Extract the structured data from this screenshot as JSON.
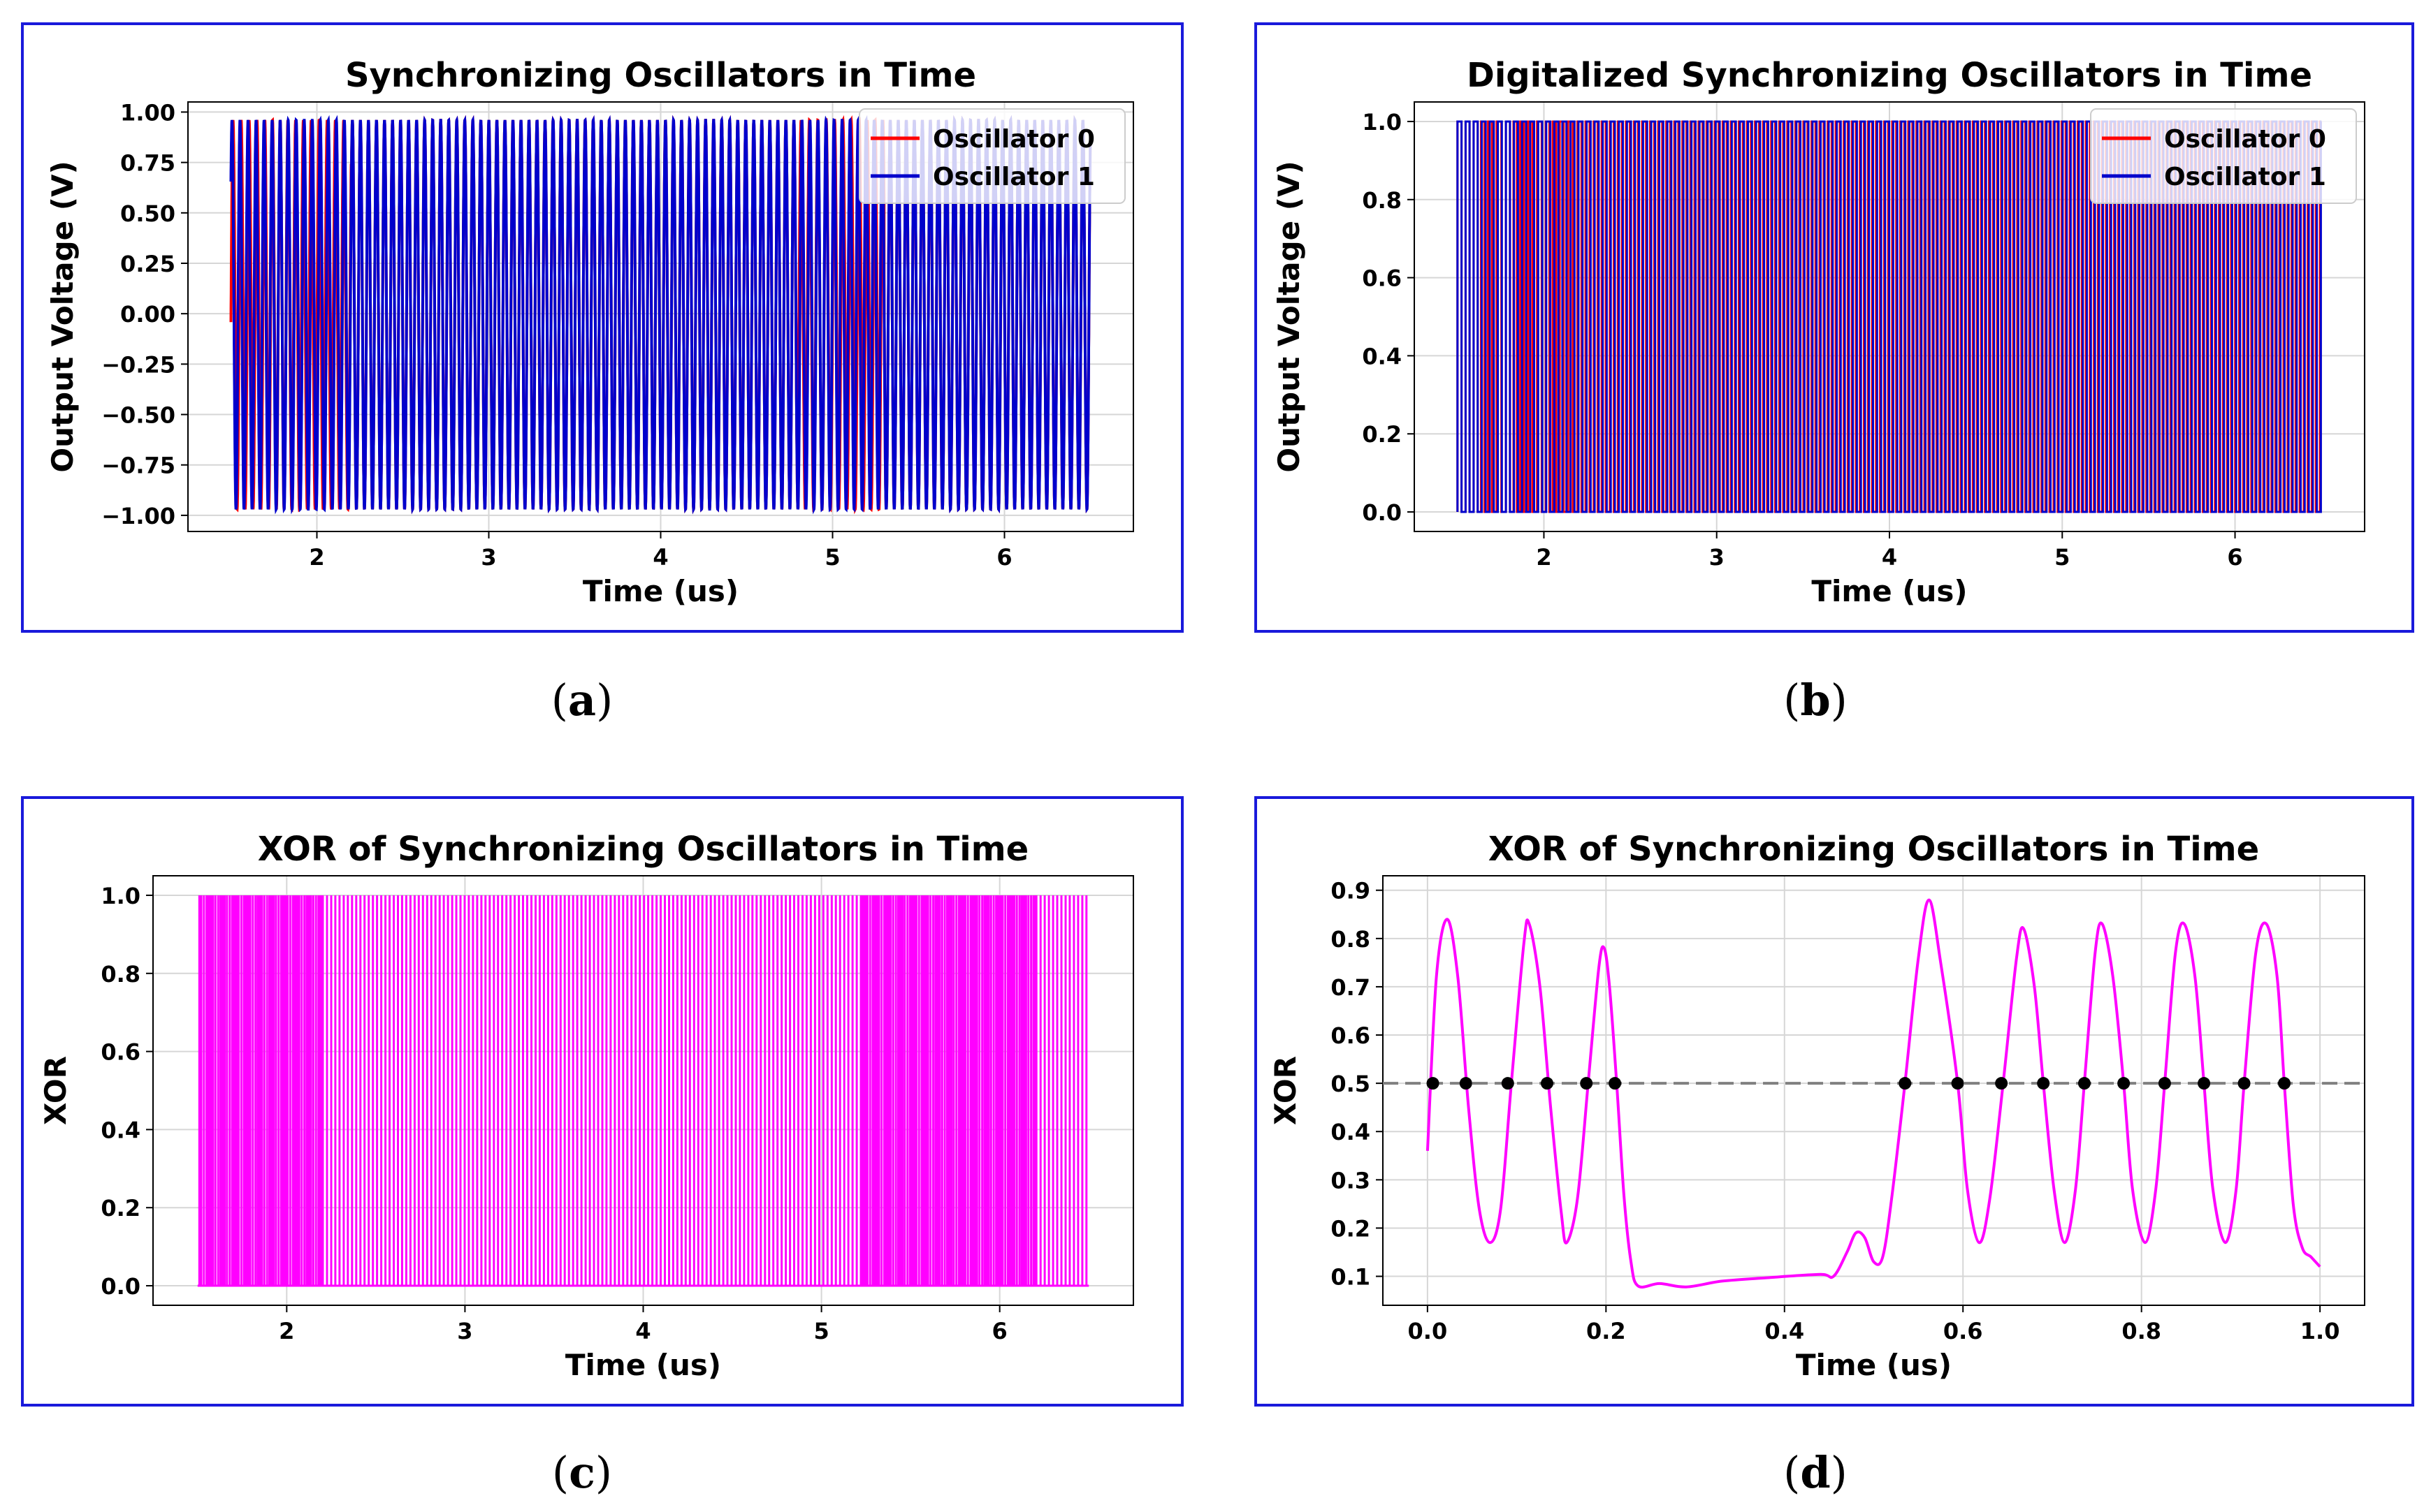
{
  "captions": {
    "a": "a",
    "b": "b",
    "c": "c",
    "d": "d"
  },
  "colors": {
    "frame": "#1a1adb",
    "osc0": "#ff0000",
    "osc1": "#0000cc",
    "xor": "#ff00ff",
    "threshold": "#808080",
    "crossing": "#000000"
  },
  "chart_data": [
    {
      "id": "a",
      "type": "line",
      "title": "Synchronizing Oscillators in Time",
      "xlabel": "Time (us)",
      "ylabel": "Output Voltage (V)",
      "xlim": [
        1.25,
        6.75
      ],
      "ylim": [
        -1.08,
        1.05
      ],
      "xticks": [
        2,
        3,
        4,
        5,
        6
      ],
      "yticks": [
        -1.0,
        -0.75,
        -0.5,
        -0.25,
        0.0,
        0.25,
        0.5,
        0.75,
        1.0
      ],
      "ytick_labels": [
        "−1.00",
        "−0.75",
        "−0.50",
        "−0.25",
        "0.00",
        "0.25",
        "0.50",
        "0.75",
        "1.00"
      ],
      "legend": [
        "Oscillator 0",
        "Oscillator 1"
      ],
      "legend_loc": "top-right",
      "signal": {
        "t_start": 1.5,
        "t_end": 6.5,
        "amp_min": -0.97,
        "amp_max": 0.96,
        "period": 0.0467,
        "sync_windows": [
          [
            2.2,
            4.8
          ],
          [
            5.3,
            6.5
          ]
        ]
      }
    },
    {
      "id": "b",
      "type": "line",
      "title": "Digitalized Synchronizing Oscillators in Time",
      "xlabel": "Time (us)",
      "ylabel": "Output Voltage (V)",
      "xlim": [
        1.25,
        6.75
      ],
      "ylim": [
        -0.05,
        1.05
      ],
      "xticks": [
        2,
        3,
        4,
        5,
        6
      ],
      "yticks": [
        0.0,
        0.2,
        0.4,
        0.6,
        0.8,
        1.0
      ],
      "ytick_labels": [
        "0.0",
        "0.2",
        "0.4",
        "0.6",
        "0.8",
        "1.0"
      ],
      "legend": [
        "Oscillator 0",
        "Oscillator 1"
      ],
      "legend_loc": "top-right",
      "signal": {
        "t_start": 1.5,
        "t_end": 6.5,
        "low": 0.0,
        "high": 1.0,
        "period": 0.0467
      }
    },
    {
      "id": "c",
      "type": "line",
      "title": "XOR of Synchronizing Oscillators in Time",
      "xlabel": "Time (us)",
      "ylabel": "XOR",
      "xlim": [
        1.25,
        6.75
      ],
      "ylim": [
        -0.05,
        1.05
      ],
      "xticks": [
        2,
        3,
        4,
        5,
        6
      ],
      "yticks": [
        0.0,
        0.2,
        0.4,
        0.6,
        0.8,
        1.0
      ],
      "ytick_labels": [
        "0.0",
        "0.2",
        "0.4",
        "0.6",
        "0.8",
        "1.0"
      ],
      "signal": {
        "t_start": 1.5,
        "t_end": 6.5,
        "low": 0.0,
        "high": 1.0
      }
    },
    {
      "id": "d",
      "type": "line",
      "title": "XOR of Synchronizing Oscillators in Time",
      "xlabel": "Time (us)",
      "ylabel": "XOR",
      "xlim": [
        -0.05,
        1.05
      ],
      "ylim": [
        0.04,
        0.93
      ],
      "xticks": [
        0.0,
        0.2,
        0.4,
        0.6,
        0.8,
        1.0
      ],
      "xtick_labels": [
        "0.0",
        "0.2",
        "0.4",
        "0.6",
        "0.8",
        "1.0"
      ],
      "yticks": [
        0.1,
        0.2,
        0.3,
        0.4,
        0.5,
        0.6,
        0.7,
        0.8,
        0.9
      ],
      "ytick_labels": [
        "0.1",
        "0.2",
        "0.3",
        "0.4",
        "0.5",
        "0.6",
        "0.7",
        "0.8",
        "0.9"
      ],
      "threshold": 0.5,
      "curve": [
        [
          0.0,
          0.36
        ],
        [
          0.01,
          0.72
        ],
        [
          0.022,
          0.84
        ],
        [
          0.034,
          0.72
        ],
        [
          0.046,
          0.45
        ],
        [
          0.058,
          0.24
        ],
        [
          0.07,
          0.17
        ],
        [
          0.082,
          0.24
        ],
        [
          0.094,
          0.5
        ],
        [
          0.108,
          0.79
        ],
        [
          0.114,
          0.83
        ],
        [
          0.126,
          0.7
        ],
        [
          0.138,
          0.45
        ],
        [
          0.15,
          0.23
        ],
        [
          0.156,
          0.17
        ],
        [
          0.168,
          0.26
        ],
        [
          0.18,
          0.5
        ],
        [
          0.192,
          0.74
        ],
        [
          0.198,
          0.78
        ],
        [
          0.204,
          0.7
        ],
        [
          0.212,
          0.5
        ],
        [
          0.22,
          0.27
        ],
        [
          0.228,
          0.13
        ],
        [
          0.236,
          0.08
        ],
        [
          0.26,
          0.085
        ],
        [
          0.29,
          0.078
        ],
        [
          0.33,
          0.09
        ],
        [
          0.38,
          0.097
        ],
        [
          0.44,
          0.104
        ],
        [
          0.455,
          0.1
        ],
        [
          0.47,
          0.15
        ],
        [
          0.48,
          0.19
        ],
        [
          0.49,
          0.18
        ],
        [
          0.5,
          0.13
        ],
        [
          0.51,
          0.14
        ],
        [
          0.52,
          0.26
        ],
        [
          0.535,
          0.5
        ],
        [
          0.55,
          0.76
        ],
        [
          0.562,
          0.88
        ],
        [
          0.575,
          0.75
        ],
        [
          0.594,
          0.5
        ],
        [
          0.605,
          0.28
        ],
        [
          0.618,
          0.17
        ],
        [
          0.63,
          0.26
        ],
        [
          0.645,
          0.5
        ],
        [
          0.66,
          0.76
        ],
        [
          0.668,
          0.82
        ],
        [
          0.68,
          0.7
        ],
        [
          0.69,
          0.5
        ],
        [
          0.702,
          0.28
        ],
        [
          0.714,
          0.17
        ],
        [
          0.726,
          0.28
        ],
        [
          0.736,
          0.5
        ],
        [
          0.748,
          0.77
        ],
        [
          0.756,
          0.83
        ],
        [
          0.768,
          0.72
        ],
        [
          0.78,
          0.5
        ],
        [
          0.79,
          0.28
        ],
        [
          0.804,
          0.17
        ],
        [
          0.816,
          0.28
        ],
        [
          0.826,
          0.5
        ],
        [
          0.838,
          0.77
        ],
        [
          0.848,
          0.83
        ],
        [
          0.86,
          0.72
        ],
        [
          0.87,
          0.5
        ],
        [
          0.88,
          0.28
        ],
        [
          0.894,
          0.17
        ],
        [
          0.906,
          0.28
        ],
        [
          0.915,
          0.5
        ],
        [
          0.928,
          0.77
        ],
        [
          0.94,
          0.83
        ],
        [
          0.952,
          0.72
        ],
        [
          0.96,
          0.5
        ],
        [
          0.97,
          0.25
        ],
        [
          0.98,
          0.16
        ],
        [
          0.99,
          0.14
        ],
        [
          1.0,
          0.12
        ]
      ],
      "crossings": [
        0.006,
        0.043,
        0.09,
        0.134,
        0.178,
        0.21,
        0.535,
        0.594,
        0.643,
        0.69,
        0.736,
        0.78,
        0.826,
        0.87,
        0.915,
        0.96
      ]
    }
  ]
}
